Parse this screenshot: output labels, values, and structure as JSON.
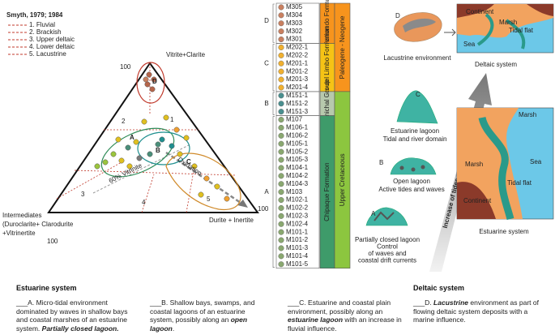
{
  "ternary": {
    "source": "Smyth, 1979; 1984",
    "legend": [
      "1. Fluvial",
      "2. Brackish",
      "3. Upper deltaic",
      "4. Lower deltaic",
      "5. Lacustrine"
    ],
    "apex_top": "Vitrite+Clarite",
    "apex_left": "Intermediates (Duroclarite+ Clarodurite +Vitrinertite",
    "apex_right": "Durite + Inertite",
    "apex_value": "100",
    "fields": [
      "1",
      "2",
      "3",
      "4",
      "5"
    ],
    "groups": [
      "A",
      "B",
      "C",
      "D"
    ],
    "notes": [
      "60% Vitrinite",
      "Oxidation"
    ]
  },
  "stratigraphy": {
    "groups": [
      {
        "label": "D",
        "samples": [
          "M305",
          "M304",
          "M303",
          "M302",
          "M301"
        ]
      },
      {
        "label": "C",
        "samples": [
          "M202-1",
          "M202-2",
          "M201-1",
          "M201-2",
          "M201-3",
          "M201-4"
        ]
      },
      {
        "label": "B",
        "samples": [
          "M151-1",
          "M151-2",
          "M151-3"
        ]
      },
      {
        "label": "A",
        "samples": [
          "M107",
          "M106-1",
          "M106-2",
          "M105-1",
          "M105-2",
          "M105-3",
          "M104-1",
          "M104-2",
          "M104-3",
          "M103",
          "M102-1",
          "M102-2",
          "M102-3",
          "M102-4",
          "M101-1",
          "M101-2",
          "M101-3",
          "M101-4",
          "M101-5"
        ]
      }
    ],
    "formations": [
      "San Fernando Formation",
      "Arcillas del Limbo Formation",
      "Palmichal Group",
      "Chipaque Formation"
    ],
    "ages": [
      "Paleogene - Neogene",
      "Upper Cretaceous"
    ]
  },
  "environments": {
    "letters": [
      "D",
      "C",
      "B",
      "A"
    ],
    "lacustrine": "Lacustrine environment",
    "deltaic": "Deltaic system",
    "estuarine_lagoon": [
      "Estuarine lagoon",
      "Tidal and river domain"
    ],
    "open_lagoon": [
      "Open lagoon",
      "Active tides and waves"
    ],
    "closed_lagoon": [
      "Partially closed lagoon",
      "Control",
      "of waves and",
      "coastal drift currents"
    ],
    "arrow": "Increase of tides and river influence",
    "estuarine": "Estuarine system",
    "map_labels": [
      "Continent",
      "Marsh",
      "Tidal flat",
      "Sea"
    ]
  },
  "descriptions": {
    "estuarine_title": "Estuarine system",
    "deltaic_title": "Deltaic system",
    "items": [
      [
        {
          "t": "___A. Micro-tidal environment dominated by waves in shallow bays and coastal marshes of an estuarine system. "
        },
        {
          "t": "Partially closed lagoon.",
          "em": true
        }
      ],
      [
        {
          "t": "___B. Shallow bays, swamps, and coastal lagoons of an estuarine system, possibly along an "
        },
        {
          "t": "open lagoon",
          "em": true
        },
        {
          "t": "."
        }
      ],
      [
        {
          "t": "___C. Estuarine and coastal plain environment, possibly along an "
        },
        {
          "t": "estuarine lagoon",
          "em": true
        },
        {
          "t": " with an increase in fluvial influence."
        }
      ],
      [
        {
          "t": "___D. "
        },
        {
          "t": "Lacustrine",
          "em": true
        },
        {
          "t": " environment as part of flowing deltaic system deposits with a marine influence."
        }
      ]
    ]
  }
}
